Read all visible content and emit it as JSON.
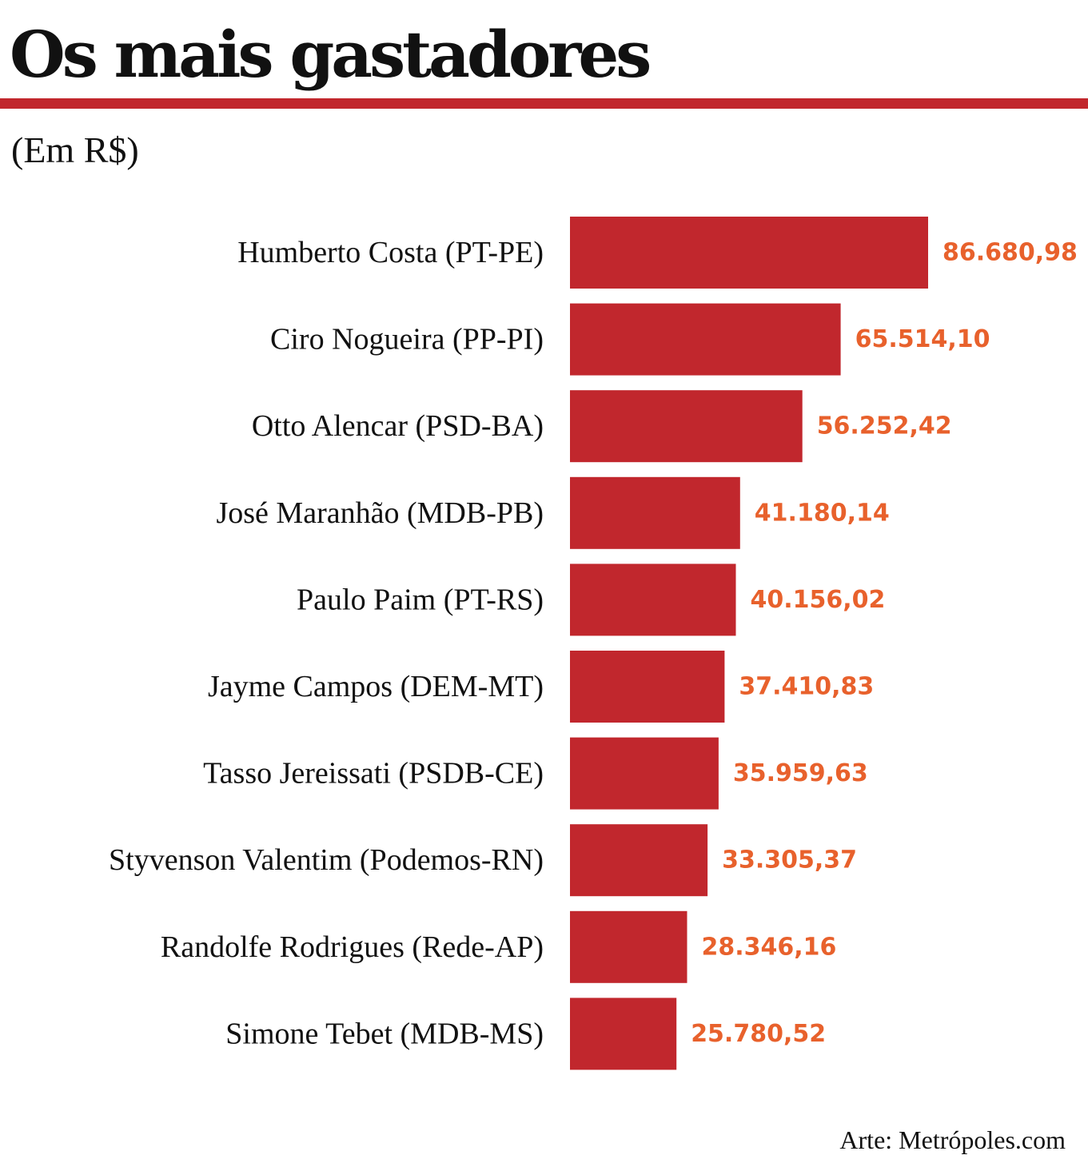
{
  "header": {
    "title": "Os mais gastadores",
    "subtitle": "(Em R$)"
  },
  "footer": {
    "source": "Arte: Metrópoles.com"
  },
  "colors": {
    "bar": "#c1272d",
    "value_label": "#e8612c",
    "rule": "#c1272d",
    "text": "#111111"
  },
  "chart_data": {
    "type": "bar",
    "orientation": "horizontal",
    "title": "Os mais gastadores",
    "subtitle": "(Em R$)",
    "xlabel": "",
    "ylabel": "",
    "grid": false,
    "legend": "none",
    "categories": [
      "Humberto Costa (PT-PE)",
      "Ciro Nogueira (PP-PI)",
      "Otto Alencar (PSD-BA)",
      "José Maranhão (MDB-PB)",
      "Paulo Paim (PT-RS)",
      "Jayme Campos (DEM-MT)",
      "Tasso Jereissati (PSDB-CE)",
      "Styvenson Valentim (Podemos-RN)",
      "Randolfe Rodrigues (Rede-AP)",
      "Simone Tebet (MDB-MS)"
    ],
    "values": [
      86680.98,
      65514.1,
      56252.42,
      41180.14,
      40156.02,
      37410.83,
      35959.63,
      33305.37,
      28346.16,
      25780.52
    ],
    "value_labels": [
      "86.680,98",
      "65.514,10",
      "56.252,42",
      "41.180,14",
      "40.156,02",
      "37.410,83",
      "35.959,63",
      "33.305,37",
      "28.346,16",
      "25.780,52"
    ],
    "xlim": [
      0,
      86680.98
    ]
  }
}
